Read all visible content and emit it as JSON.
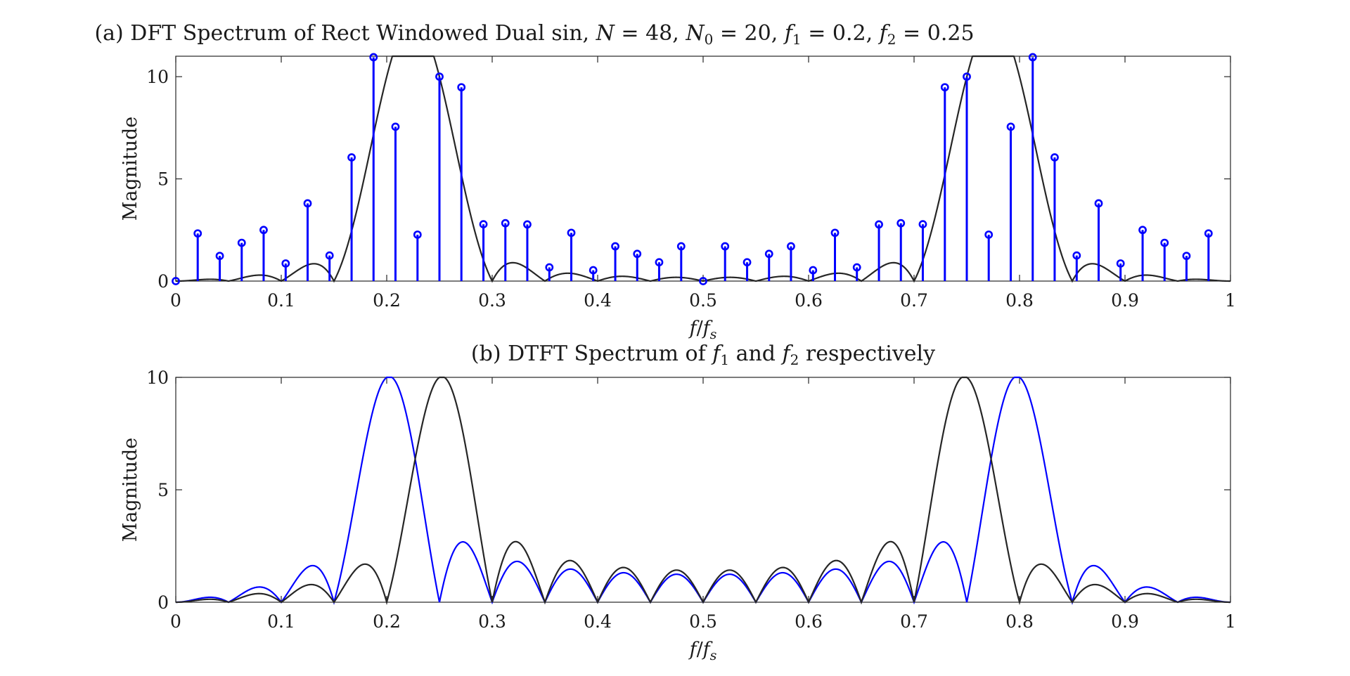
{
  "chart_data": [
    {
      "type": "stem",
      "title": {
        "text": "(a) DFT Spectrum of Rect Windowed Dual sin, ",
        "params": [
          {
            "sym": "N",
            "sub": "",
            "val": "48"
          },
          {
            "sym": "N",
            "sub": "0",
            "val": "20"
          },
          {
            "sym": "f",
            "sub": "1",
            "val": "0.2"
          },
          {
            "sym": "f",
            "sub": "2",
            "val": "0.25"
          }
        ]
      },
      "xlabel": {
        "num": "f",
        "den": "f",
        "den_sub": "s"
      },
      "ylabel": "Magnitude",
      "xlim": [
        0,
        1
      ],
      "ylim": [
        0,
        11
      ],
      "xticks": [
        0,
        0.1,
        0.2,
        0.3,
        0.4,
        0.5,
        0.6,
        0.7,
        0.8,
        0.9,
        1
      ],
      "xtick_labels": [
        "0",
        "0.1",
        "0.2",
        "0.3",
        "0.4",
        "0.5",
        "0.6",
        "0.7",
        "0.8",
        "0.9",
        "1"
      ],
      "yticks": [
        0,
        5,
        10
      ],
      "ytick_labels": [
        "0",
        "5",
        "10"
      ],
      "stem_color": "#0000ff",
      "marker_color": "#0000ff",
      "envelope_color": "#262626",
      "N": 48,
      "N0": 20,
      "f1": 0.2,
      "f2": 0.25,
      "stems": [
        {
          "x": 0.0,
          "y": 0.0
        },
        {
          "x": 0.0208,
          "y": 2.33
        },
        {
          "x": 0.0417,
          "y": 1.23
        },
        {
          "x": 0.0625,
          "y": 1.87
        },
        {
          "x": 0.0833,
          "y": 2.5
        },
        {
          "x": 0.1042,
          "y": 0.86
        },
        {
          "x": 0.125,
          "y": 3.8
        },
        {
          "x": 0.1458,
          "y": 1.25
        },
        {
          "x": 0.1667,
          "y": 6.05
        },
        {
          "x": 0.1875,
          "y": 10.95
        },
        {
          "x": 0.2083,
          "y": 7.55
        },
        {
          "x": 0.2292,
          "y": 2.27
        },
        {
          "x": 0.25,
          "y": 10.0
        },
        {
          "x": 0.2708,
          "y": 9.48
        },
        {
          "x": 0.2917,
          "y": 2.78
        },
        {
          "x": 0.3125,
          "y": 2.83
        },
        {
          "x": 0.3333,
          "y": 2.77
        },
        {
          "x": 0.3542,
          "y": 0.67
        },
        {
          "x": 0.375,
          "y": 2.36
        },
        {
          "x": 0.3958,
          "y": 0.53
        },
        {
          "x": 0.4167,
          "y": 1.7
        },
        {
          "x": 0.4375,
          "y": 1.33
        },
        {
          "x": 0.4583,
          "y": 0.92
        },
        {
          "x": 0.4792,
          "y": 1.7
        },
        {
          "x": 0.5,
          "y": 0.0
        },
        {
          "x": 0.5208,
          "y": 1.7
        },
        {
          "x": 0.5417,
          "y": 0.92
        },
        {
          "x": 0.5625,
          "y": 1.33
        },
        {
          "x": 0.5833,
          "y": 1.7
        },
        {
          "x": 0.6042,
          "y": 0.53
        },
        {
          "x": 0.625,
          "y": 2.36
        },
        {
          "x": 0.6458,
          "y": 0.67
        },
        {
          "x": 0.6667,
          "y": 2.77
        },
        {
          "x": 0.6875,
          "y": 2.83
        },
        {
          "x": 0.7083,
          "y": 2.78
        },
        {
          "x": 0.7292,
          "y": 9.48
        },
        {
          "x": 0.75,
          "y": 10.0
        },
        {
          "x": 0.7708,
          "y": 2.27
        },
        {
          "x": 0.7917,
          "y": 7.55
        },
        {
          "x": 0.8125,
          "y": 10.95
        },
        {
          "x": 0.8333,
          "y": 6.05
        },
        {
          "x": 0.8542,
          "y": 1.25
        },
        {
          "x": 0.875,
          "y": 3.8
        },
        {
          "x": 0.8958,
          "y": 0.86
        },
        {
          "x": 0.9167,
          "y": 2.5
        },
        {
          "x": 0.9375,
          "y": 1.87
        },
        {
          "x": 0.9583,
          "y": 1.23
        },
        {
          "x": 0.9792,
          "y": 2.33
        }
      ]
    },
    {
      "type": "line",
      "title": {
        "prefix": "(b) DTFT Spectrum of ",
        "mid": " and ",
        "suffix": " respectively"
      },
      "xlabel": {
        "num": "f",
        "den": "f",
        "den_sub": "s"
      },
      "ylabel": "Magnitude",
      "xlim": [
        0,
        1
      ],
      "ylim": [
        0,
        10
      ],
      "xticks": [
        0,
        0.1,
        0.2,
        0.3,
        0.4,
        0.5,
        0.6,
        0.7,
        0.8,
        0.9,
        1
      ],
      "xtick_labels": [
        "0",
        "0.1",
        "0.2",
        "0.3",
        "0.4",
        "0.5",
        "0.6",
        "0.7",
        "0.8",
        "0.9",
        "1"
      ],
      "yticks": [
        0,
        5,
        10
      ],
      "ytick_labels": [
        "0",
        "5",
        "10"
      ],
      "N0": 20,
      "series": [
        {
          "sym": "f",
          "sub": "1",
          "freq": 0.2,
          "color": "#0000ff"
        },
        {
          "sym": "f",
          "sub": "2",
          "freq": 0.25,
          "color": "#262626"
        }
      ]
    }
  ]
}
